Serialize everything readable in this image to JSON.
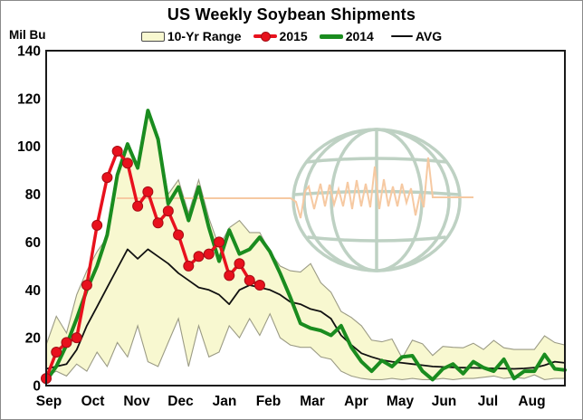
{
  "title": "US Weekly Soybean Shipments",
  "y_axis": {
    "unit_label": "Mil Bu",
    "ticks": [
      0,
      20,
      40,
      60,
      80,
      100,
      120,
      140
    ],
    "min": 0,
    "max": 140
  },
  "x_axis": {
    "months": [
      "Sep",
      "Oct",
      "Nov",
      "Dec",
      "Jan",
      "Feb",
      "Mar",
      "Apr",
      "May",
      "Jun",
      "Jul",
      "Aug"
    ]
  },
  "legend": [
    {
      "label": "10-Yr Range",
      "type": "band",
      "color": "#f8f8d0"
    },
    {
      "label": "2015",
      "type": "line-marker",
      "color": "#e8111d"
    },
    {
      "label": "2014",
      "type": "line",
      "color": "#1a8c1f"
    },
    {
      "label": "AVG",
      "type": "line",
      "color": "#111111"
    }
  ],
  "chart_data": {
    "type": "line",
    "title": "US Weekly Soybean Shipments",
    "ylabel": "Mil Bu",
    "ylim": [
      0,
      140
    ],
    "x_unit": "marketing-year week, Sep through Aug (52 weeks)",
    "months": [
      "Sep",
      "Oct",
      "Nov",
      "Dec",
      "Jan",
      "Feb",
      "Mar",
      "Apr",
      "May",
      "Jun",
      "Jul",
      "Aug"
    ],
    "grid": false,
    "legend_position": "top-center",
    "series": [
      {
        "name": "10-Yr Range max",
        "style": "band-upper",
        "values": [
          17,
          29,
          22,
          38,
          48,
          56,
          62,
          88,
          101,
          91,
          115,
          103,
          80,
          86,
          72,
          86,
          70,
          58,
          66,
          69,
          64,
          64,
          56,
          50,
          48,
          47.5,
          51,
          43,
          39,
          31,
          28.5,
          25,
          19,
          18.3,
          19.5,
          11.5,
          19,
          17.5,
          12.6,
          16.4,
          16,
          15.8,
          17.7,
          15.1,
          18.9,
          15.8,
          15.1,
          15.1,
          15.1,
          20.8,
          18,
          17
        ]
      },
      {
        "name": "10-Yr Range min",
        "style": "band-lower",
        "values": [
          4,
          6,
          4,
          9,
          6,
          14,
          8,
          18,
          12,
          25,
          10,
          8,
          18,
          28,
          8,
          25,
          12,
          14,
          25,
          20,
          28,
          21,
          30,
          20,
          17,
          16,
          16,
          12,
          11,
          6,
          4,
          3,
          2.5,
          2.5,
          3,
          2.5,
          3,
          2.5,
          2.5,
          3,
          2.5,
          3,
          3,
          3.5,
          4,
          3,
          3.5,
          3,
          4.5,
          2.5,
          3,
          3
        ]
      },
      {
        "name": "AVG",
        "style": "thin-black",
        "values": [
          7,
          8,
          9,
          15,
          25,
          33,
          41,
          49,
          57,
          53,
          57,
          54,
          51,
          47,
          44,
          41,
          40,
          38,
          34,
          40,
          42,
          41,
          40,
          38,
          35,
          34,
          32,
          31,
          28,
          21,
          17,
          13.5,
          12,
          10.7,
          10,
          9.5,
          9,
          8.5,
          8,
          7.8,
          7.6,
          7.5,
          7.4,
          7.3,
          7.2,
          7.1,
          7,
          7.2,
          7.5,
          8.5,
          10,
          9.5
        ]
      },
      {
        "name": "2014",
        "style": "thick-green",
        "values": [
          2,
          8,
          17,
          28,
          40,
          50,
          63,
          88,
          101,
          91,
          115,
          103,
          76,
          83,
          69,
          83,
          66,
          52,
          65,
          55,
          57,
          62,
          56,
          47,
          37,
          26,
          24,
          23,
          21,
          25,
          16,
          10,
          6,
          10.5,
          8,
          12,
          12.5,
          6,
          2.5,
          7,
          9,
          5,
          10,
          7.5,
          6,
          11,
          3,
          6,
          6,
          13,
          7,
          6.5
        ]
      },
      {
        "name": "2015",
        "style": "red-markers",
        "values": [
          3,
          14,
          18,
          20,
          42,
          67,
          87,
          98,
          93,
          75,
          81,
          68,
          73,
          63,
          50,
          54,
          55,
          60,
          46,
          51,
          44,
          42
        ]
      }
    ]
  },
  "watermark": {
    "description": "globe with seismograph trace",
    "globe_color": "#b7cdbd",
    "trace_color": "#f6c9a2"
  },
  "colors": {
    "background": "#ffffff",
    "plot_border": "#1a1a1a",
    "band_fill": "#f8f8d0",
    "band_border": "#9b9b85",
    "series_2015": "#e8111d",
    "series_2015_marker_edge": "#a50d15",
    "series_2014": "#1a8c1f",
    "avg": "#111111",
    "text": "#000000"
  }
}
